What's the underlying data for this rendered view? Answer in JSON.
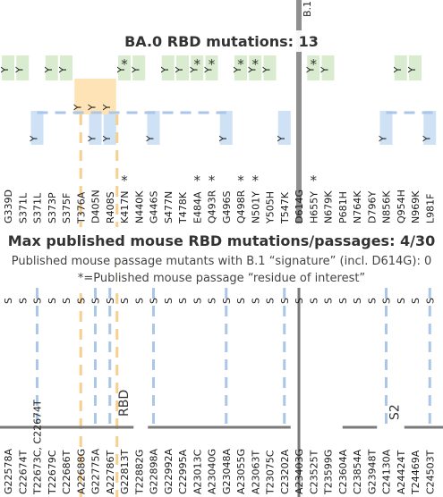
{
  "lineage_label": "B.1",
  "panel_top": {
    "title": "BA.0 RBD mutations: 13"
  },
  "panel_mid": {
    "title": "Max published mouse RBD mutations/passages: 4/30",
    "line1": "Published mouse passage mutants with B.1 “signature” (incl. D614G): 0",
    "line2": "*=Published mouse passage “residue of interest”"
  },
  "marks": {
    "yes": "Y",
    "star": "*",
    "s": "S"
  },
  "region_labels": [
    "RBD",
    "S2"
  ],
  "columns": [
    {
      "aa": "G339D",
      "nt": "G22578A",
      "y_top": 1,
      "star": 0,
      "y_mid": 0
    },
    {
      "aa": "S371L",
      "nt": "C22674T",
      "y_top": 1,
      "star": 0,
      "y_mid": 0
    },
    {
      "aa": "S371L",
      "nt": "T22673C, C22674T",
      "y_top": 0,
      "star": 0,
      "y_mid": 1
    },
    {
      "aa": "S373P",
      "nt": "T22679C",
      "y_top": 1,
      "star": 0,
      "y_mid": 0
    },
    {
      "aa": "S375F",
      "nt": "C22686T",
      "y_top": 1,
      "star": 0,
      "y_mid": 0
    },
    {
      "aa": "T376A",
      "nt": "A22688G",
      "y_top": 0,
      "star": 0,
      "y_mid": 0
    },
    {
      "aa": "D405N",
      "nt": "G22775A",
      "y_top": 0,
      "star": 0,
      "y_mid": 1
    },
    {
      "aa": "R408S",
      "nt": "A22786T",
      "y_top": 0,
      "star": 0,
      "y_mid": 1
    },
    {
      "aa": "K417N",
      "nt": "G22813T",
      "y_top": 1,
      "star": 1,
      "y_mid": 0
    },
    {
      "aa": "N440K",
      "nt": "T22882G",
      "y_top": 1,
      "star": 0,
      "y_mid": 0
    },
    {
      "aa": "G446S",
      "nt": "G22898A",
      "y_top": 0,
      "star": 0,
      "y_mid": 1
    },
    {
      "aa": "S477N",
      "nt": "G22992A",
      "y_top": 1,
      "star": 0,
      "y_mid": 0
    },
    {
      "aa": "T478K",
      "nt": "C22995A",
      "y_top": 1,
      "star": 0,
      "y_mid": 0
    },
    {
      "aa": "E484A",
      "nt": "A23013C",
      "y_top": 1,
      "star": 1,
      "y_mid": 0
    },
    {
      "aa": "Q493R",
      "nt": "A23040G",
      "y_top": 1,
      "star": 1,
      "y_mid": 0
    },
    {
      "aa": "G496S",
      "nt": "G23048A",
      "y_top": 0,
      "star": 0,
      "y_mid": 1
    },
    {
      "aa": "Q498R",
      "nt": "A23055G",
      "y_top": 1,
      "star": 1,
      "y_mid": 0
    },
    {
      "aa": "N501Y",
      "nt": "A23063T",
      "y_top": 1,
      "star": 1,
      "y_mid": 0
    },
    {
      "aa": "Y505H",
      "nt": "T23075C",
      "y_top": 1,
      "star": 0,
      "y_mid": 0
    },
    {
      "aa": "T547K",
      "nt": "C23202A",
      "y_top": 0,
      "star": 0,
      "y_mid": 1
    },
    {
      "aa": "D614G",
      "nt": "A23403G",
      "y_top": 0,
      "star": 0,
      "y_mid": 0
    },
    {
      "aa": "H655Y",
      "nt": "C23525T",
      "y_top": 1,
      "star": 1,
      "y_mid": 0
    },
    {
      "aa": "N679K",
      "nt": "T23599G",
      "y_top": 1,
      "star": 0,
      "y_mid": 0
    },
    {
      "aa": "P681H",
      "nt": "C23604A",
      "y_top": 0,
      "star": 0,
      "y_mid": 0
    },
    {
      "aa": "N764K",
      "nt": "C23854A",
      "y_top": 0,
      "star": 0,
      "y_mid": 0
    },
    {
      "aa": "D796Y",
      "nt": "G23948T",
      "y_top": 0,
      "star": 0,
      "y_mid": 0
    },
    {
      "aa": "N856K",
      "nt": "C24130A",
      "y_top": 0,
      "star": 0,
      "y_mid": 1
    },
    {
      "aa": "Q954H",
      "nt": "A24424T",
      "y_top": 1,
      "star": 0,
      "y_mid": 0
    },
    {
      "aa": "N969K",
      "nt": "T24469A",
      "y_top": 1,
      "star": 0,
      "y_mid": 0
    },
    {
      "aa": "L981F",
      "nt": "C24503T",
      "y_top": 0,
      "star": 0,
      "y_mid": 1
    }
  ]
}
